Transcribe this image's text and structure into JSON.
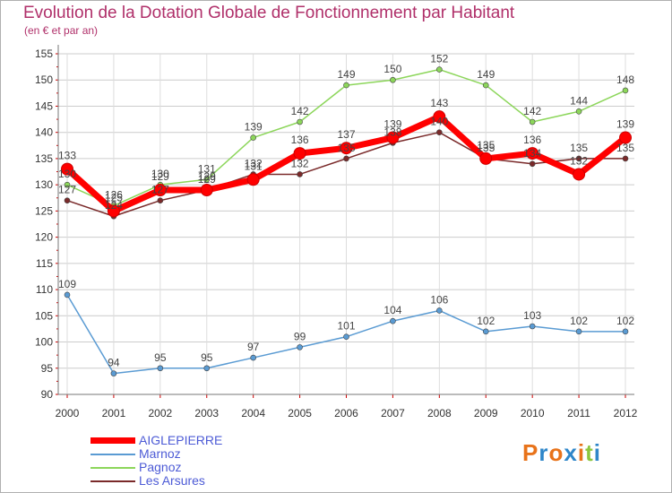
{
  "header": {
    "title": "Evolution de la Dotation Globale de Fonctionnement par Habitant",
    "subtitle": "(en € et par an)"
  },
  "logo": {
    "text": "Proxiti",
    "colors": [
      "#e8731a",
      "#2e86c9",
      "#e8731a",
      "#2e86c9",
      "#e8731a",
      "#8cc63f",
      "#2e86c9"
    ]
  },
  "chart_data": {
    "type": "line",
    "x": [
      "2000",
      "2001",
      "2002",
      "2003",
      "2004",
      "2005",
      "2006",
      "2007",
      "2008",
      "2009",
      "2010",
      "2011",
      "2012"
    ],
    "ylim": [
      90,
      155
    ],
    "yticks": [
      90,
      95,
      100,
      105,
      110,
      115,
      120,
      125,
      130,
      135,
      140,
      145,
      150,
      155
    ],
    "grid": true,
    "legend_position": "bottom-left",
    "series": [
      {
        "name": "AIGLEPIERRE",
        "color": "#ff0000",
        "values": [
          133,
          125,
          129,
          129,
          131,
          136,
          137,
          139,
          143,
          135,
          136,
          132,
          139
        ]
      },
      {
        "name": "Marnoz",
        "color": "#5a9bd3",
        "values": [
          109,
          94,
          95,
          95,
          97,
          99,
          101,
          104,
          106,
          102,
          103,
          102,
          102
        ]
      },
      {
        "name": "Pagnoz",
        "color": "#8cd65a",
        "values": [
          130,
          126,
          130,
          131,
          139,
          142,
          149,
          150,
          152,
          149,
          142,
          144,
          148
        ]
      },
      {
        "name": "Les Arsures",
        "color": "#7a2a2a",
        "values": [
          127,
          124,
          127,
          129,
          132,
          132,
          135,
          138,
          140,
          135,
          134,
          135,
          135
        ]
      }
    ]
  }
}
